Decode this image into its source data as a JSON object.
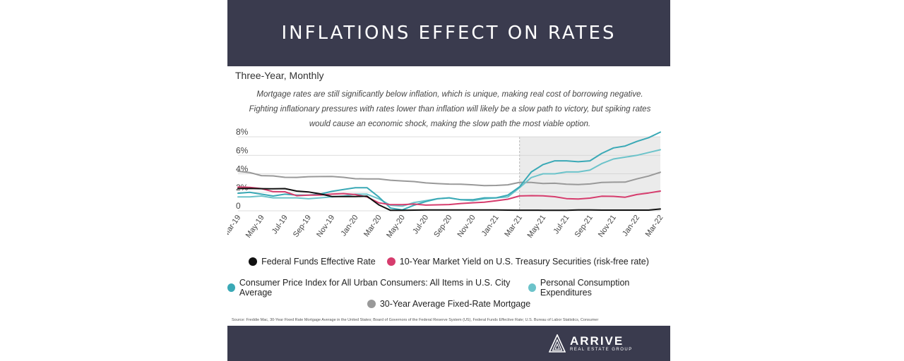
{
  "header": {
    "title": "INFLATIONS EFFECT ON RATES"
  },
  "subtitle": "Three-Year, Monthly",
  "notes": [
    "Mortgage rates are still significantly below inflation, which is unique, making real cost of borrowing negative.",
    "Fighting inflationary pressures with rates lower than inflation will likely be a slow path to victory, but spiking rates",
    "would cause an economic shock, making the slow path the most viable option."
  ],
  "legend": {
    "fed": "Federal Funds Effective Rate",
    "treasury": "10-Year Market Yield on U.S. Treasury Securities (risk-free rate)",
    "cpi": "Consumer Price Index for All Urban Consumers: All Items in U.S. City Average",
    "pce": "Personal Consumption Expenditures",
    "mortgage": "30-Year Average Fixed-Rate Mortgage"
  },
  "source": "Source:   Freddie Mac, 30-Year Fixed Rate Mortgage Average in the United States; Board of Governors of the Federal Reserve System (US), Federal Funds Effective Rate; U.S. Bureau of Labor Statistics, Consumer",
  "footer": {
    "brand": "ARRIVE",
    "tagline": "REAL ESTATE GROUP"
  },
  "chart_data": {
    "type": "line",
    "ylim": [
      0,
      8
    ],
    "yticks": [
      "0",
      "2%",
      "4%",
      "6%",
      "8%"
    ],
    "x_tick_labels": [
      "Mar-19",
      "May-19",
      "Jul-19",
      "Sep-19",
      "Nov-19",
      "Jan-20",
      "Mar-20",
      "May-20",
      "Jul-20",
      "Sep-20",
      "Nov-20",
      "Jan-21",
      "Mar-21",
      "May-21",
      "Jul-21",
      "Sep-21",
      "Nov-21",
      "Jan-22",
      "Mar-22"
    ],
    "shaded_region": [
      "Mar-21",
      "Mar-22"
    ],
    "series": [
      {
        "key": "fed",
        "name": "Federal Funds Effective Rate",
        "color": "#111111",
        "values": [
          2.41,
          2.42,
          2.39,
          2.38,
          2.4,
          2.13,
          2.04,
          1.83,
          1.55,
          1.55,
          1.55,
          1.58,
          0.65,
          0.05,
          0.05,
          0.08,
          0.09,
          0.1,
          0.09,
          0.09,
          0.09,
          0.09,
          0.09,
          0.08,
          0.07,
          0.07,
          0.06,
          0.06,
          0.06,
          0.1,
          0.09,
          0.08,
          0.08,
          0.08,
          0.08,
          0.08,
          0.2
        ]
      },
      {
        "key": "treasury",
        "name": "10-Year Market Yield on U.S. Treasury Securities (risk-free rate)",
        "color": "#d63c6d",
        "values": [
          2.57,
          2.53,
          2.4,
          2.07,
          2.06,
          1.63,
          1.7,
          1.71,
          1.81,
          1.86,
          1.76,
          1.5,
          0.87,
          0.66,
          0.67,
          0.73,
          0.62,
          0.65,
          0.68,
          0.79,
          0.87,
          0.93,
          1.08,
          1.26,
          1.61,
          1.64,
          1.62,
          1.52,
          1.32,
          1.28,
          1.37,
          1.58,
          1.56,
          1.47,
          1.76,
          1.93,
          2.13
        ]
      },
      {
        "key": "cpi",
        "name": "Consumer Price Index for All Urban Consumers: All Items in U.S. City Average",
        "color": "#3aa9b6",
        "values": [
          1.9,
          2.0,
          1.8,
          1.6,
          1.8,
          1.7,
          1.7,
          1.8,
          2.1,
          2.3,
          2.5,
          2.5,
          1.5,
          0.3,
          0.1,
          0.6,
          1.0,
          1.3,
          1.4,
          1.2,
          1.2,
          1.4,
          1.4,
          1.7,
          2.6,
          4.2,
          5.0,
          5.4,
          5.4,
          5.3,
          5.4,
          6.2,
          6.8,
          7.0,
          7.5,
          7.9,
          8.5
        ]
      },
      {
        "key": "pce",
        "name": "Personal Consumption Expenditures",
        "color": "#6cc3ca",
        "values": [
          1.5,
          1.5,
          1.6,
          1.4,
          1.4,
          1.4,
          1.3,
          1.4,
          1.5,
          1.6,
          1.8,
          1.8,
          1.3,
          0.6,
          0.5,
          0.9,
          1.1,
          1.3,
          1.4,
          1.2,
          1.1,
          1.3,
          1.4,
          1.5,
          2.5,
          3.6,
          4.0,
          4.0,
          4.2,
          4.2,
          4.4,
          5.1,
          5.6,
          5.8,
          6.0,
          6.3,
          6.6
        ]
      },
      {
        "key": "mortgage",
        "name": "30-Year Average Fixed-Rate Mortgage",
        "color": "#999999",
        "values": [
          4.27,
          4.14,
          3.8,
          3.77,
          3.62,
          3.61,
          3.69,
          3.7,
          3.72,
          3.62,
          3.47,
          3.45,
          3.45,
          3.31,
          3.23,
          3.16,
          3.02,
          2.94,
          2.89,
          2.87,
          2.81,
          2.72,
          2.74,
          2.81,
          3.08,
          3.06,
          2.96,
          2.98,
          2.87,
          2.84,
          2.9,
          3.07,
          3.09,
          3.1,
          3.45,
          3.76,
          4.17
        ]
      }
    ]
  }
}
